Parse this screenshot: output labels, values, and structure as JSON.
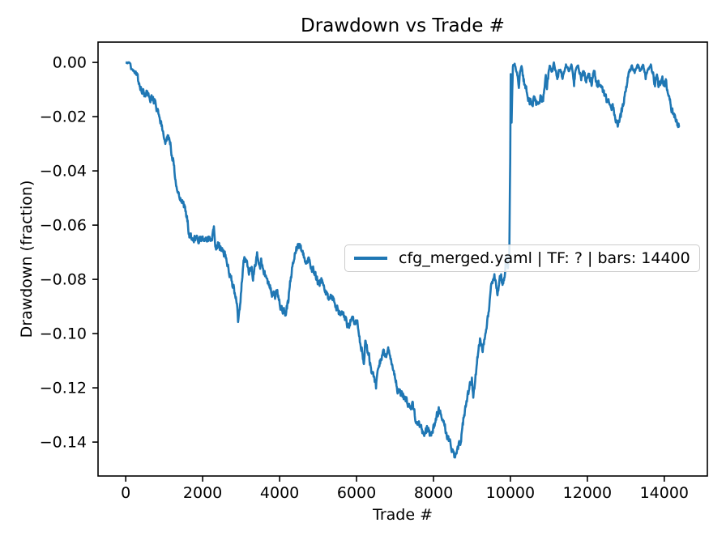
{
  "figure": {
    "background": "#ffffff"
  },
  "chart_data": {
    "type": "line",
    "title": "Drawdown vs Trade #",
    "xlabel": "Trade #",
    "ylabel": "Drawdown (fraction)",
    "legend": {
      "entries": [
        "cfg_merged.yaml | TF: ? | bars: 14400"
      ],
      "position": "center right"
    },
    "line_color": "#1f77b4",
    "axes_color": "#000000",
    "legend_border_color": "#cccccc",
    "grid": false,
    "xlim": [
      -720,
      15120
    ],
    "ylim": [
      -0.1525,
      0.0075
    ],
    "x_ticks": [
      0,
      2000,
      4000,
      6000,
      8000,
      10000,
      12000,
      14000
    ],
    "y_ticks": [
      0.0,
      -0.02,
      -0.04,
      -0.06,
      -0.08,
      -0.1,
      -0.12,
      -0.14
    ],
    "series": [
      {
        "name": "cfg_merged.yaml | TF: ? | bars: 14400",
        "x": [
          0,
          60,
          110,
          140,
          200,
          260,
          310,
          360,
          420,
          465,
          540,
          600,
          650,
          700,
          757,
          790,
          860,
          920,
          960,
          1000,
          1030,
          1070,
          1135,
          1170,
          1205,
          1240,
          1276,
          1311,
          1346,
          1415,
          1451,
          1521,
          1592,
          1627,
          1662,
          1732,
          1800,
          1870,
          1940,
          2010,
          2080,
          2150,
          2223,
          2293,
          2328,
          2398,
          2504,
          2574,
          2640,
          2679,
          2750,
          2784,
          2854,
          2890,
          2920,
          2993,
          3064,
          3134,
          3205,
          3275,
          3310,
          3415,
          3486,
          3521,
          3591,
          3661,
          3731,
          3802,
          3872,
          3942,
          4012,
          4083,
          4153,
          4223,
          4293,
          4364,
          4434,
          4539,
          4610,
          4680,
          4750,
          4821,
          4891,
          4961,
          5031,
          5086,
          5191,
          5297,
          5367,
          5437,
          5507,
          5577,
          5648,
          5718,
          5788,
          5860,
          5940,
          6010,
          6086,
          6156,
          6191,
          6226,
          6296,
          6366,
          6471,
          6506,
          6576,
          6682,
          6752,
          6822,
          6893,
          6998,
          7068,
          7138,
          7314,
          7384,
          7454,
          7524,
          7630,
          7700,
          7770,
          7840,
          7911,
          7981,
          8080,
          8156,
          8226,
          8367,
          8437,
          8542,
          8648,
          8718,
          8788,
          8858,
          8928,
          8999,
          9034,
          9104,
          9139,
          9209,
          9279,
          9330,
          9400,
          9514,
          9585,
          9655,
          9725,
          9760,
          9795,
          9860,
          9900,
          9935,
          9970,
          9995,
          10007,
          10030,
          10065,
          10110,
          10180,
          10220,
          10250,
          10290,
          10360,
          10430,
          10500,
          10570,
          10640,
          10710,
          10780,
          10850,
          10920,
          10950,
          11020,
          11090,
          11130,
          11230,
          11300,
          11375,
          11445,
          11515,
          11585,
          11655,
          11690,
          11760,
          11830,
          11900,
          11970,
          12040,
          12110,
          12180,
          12250,
          12320,
          12390,
          12460,
          12530,
          12600,
          12670,
          12720,
          12790,
          12850,
          12910,
          12970,
          13030,
          13090,
          13160,
          13230,
          13300,
          13375,
          13445,
          13515,
          13585,
          13650,
          13690,
          13760,
          13800,
          13870,
          13940,
          14000,
          14040,
          14110,
          14180,
          14250,
          14320,
          14400
        ],
        "y": [
          0,
          0,
          -0.0005,
          -0.002,
          -0.003,
          -0.0035,
          -0.006,
          -0.009,
          -0.0105,
          -0.0115,
          -0.011,
          -0.0125,
          -0.0135,
          -0.013,
          -0.0145,
          -0.017,
          -0.0195,
          -0.022,
          -0.0255,
          -0.0275,
          -0.028,
          -0.0265,
          -0.0275,
          -0.031,
          -0.035,
          -0.0365,
          -0.0405,
          -0.045,
          -0.047,
          -0.049,
          -0.05,
          -0.0534,
          -0.0579,
          -0.0609,
          -0.0639,
          -0.0654,
          -0.065,
          -0.066,
          -0.0648,
          -0.0658,
          -0.0645,
          -0.0655,
          -0.065,
          -0.0619,
          -0.0679,
          -0.0669,
          -0.0699,
          -0.0714,
          -0.0739,
          -0.0764,
          -0.0794,
          -0.0829,
          -0.0859,
          -0.0895,
          -0.0958,
          -0.0854,
          -0.0739,
          -0.0719,
          -0.0779,
          -0.0749,
          -0.0794,
          -0.0704,
          -0.0759,
          -0.0734,
          -0.0774,
          -0.0789,
          -0.0824,
          -0.0844,
          -0.0864,
          -0.0849,
          -0.0899,
          -0.0919,
          -0.0929,
          -0.0879,
          -0.0789,
          -0.0729,
          -0.0684,
          -0.0674,
          -0.0699,
          -0.0729,
          -0.0724,
          -0.0759,
          -0.0769,
          -0.0794,
          -0.0819,
          -0.0794,
          -0.0849,
          -0.0874,
          -0.0859,
          -0.0889,
          -0.0908,
          -0.0938,
          -0.0933,
          -0.0953,
          -0.0968,
          -0.095,
          -0.0955,
          -0.0948,
          -0.1028,
          -0.1068,
          -0.1118,
          -0.1038,
          -0.1058,
          -0.1123,
          -0.1168,
          -0.1195,
          -0.1128,
          -0.1063,
          -0.1088,
          -0.1048,
          -0.1098,
          -0.1158,
          -0.1208,
          -0.1218,
          -0.1248,
          -0.1278,
          -0.1258,
          -0.1308,
          -0.1338,
          -0.1353,
          -0.1368,
          -0.1353,
          -0.1373,
          -0.1358,
          -0.1308,
          -0.1278,
          -0.1308,
          -0.1388,
          -0.1408,
          -0.1455,
          -0.1418,
          -0.1388,
          -0.1308,
          -0.1258,
          -0.1208,
          -0.1168,
          -0.1248,
          -0.1148,
          -0.1098,
          -0.1028,
          -0.1078,
          -0.1018,
          -0.0958,
          -0.0809,
          -0.0794,
          -0.0854,
          -0.0804,
          -0.0789,
          -0.0818,
          -0.0769,
          -0.0709,
          -0.0739,
          -0.0719,
          -0.035,
          -0.004,
          -0.0235,
          -0.001,
          -0.0005,
          -0.0055,
          -0.0085,
          -0.0035,
          -0.0015,
          -0.0075,
          -0.0115,
          -0.0145,
          -0.016,
          -0.0135,
          -0.0155,
          -0.012,
          -0.014,
          -0.0065,
          -0.0095,
          -0.001,
          -0.0035,
          -0.0005,
          -0.0055,
          -0.0025,
          -0.0055,
          -0.0005,
          -0.0035,
          -0.0008,
          -0.0075,
          -0.0025,
          -0.0005,
          -0.0065,
          -0.0035,
          -0.006,
          -0.004,
          -0.007,
          -0.004,
          -0.0075,
          -0.007,
          -0.0095,
          -0.0125,
          -0.015,
          -0.014,
          -0.0175,
          -0.0195,
          -0.0233,
          -0.021,
          -0.017,
          -0.0125,
          -0.0085,
          -0.0045,
          -0.001,
          -0.0035,
          -0.0008,
          -0.003,
          -0.0008,
          -0.005,
          -0.0025,
          -0.0008,
          -0.004,
          -0.0075,
          -0.005,
          -0.0085,
          -0.006,
          -0.0075,
          -0.007,
          -0.0125,
          -0.0165,
          -0.0195,
          -0.022,
          -0.0238
        ]
      }
    ]
  }
}
